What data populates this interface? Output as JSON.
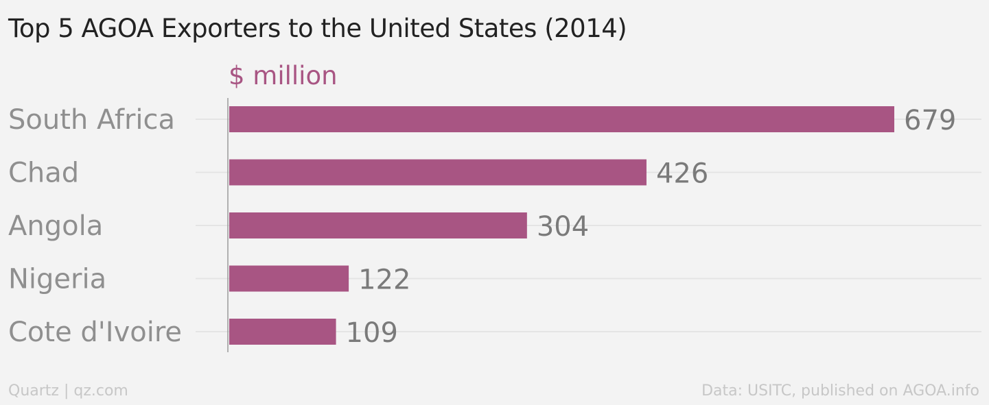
{
  "title": "Top 5 AGOA Exporters to the United States (2014)",
  "unit_label": "$ million",
  "colors": {
    "bar": "#a85583",
    "unit": "#a85583",
    "category_label": "#8f8f8f",
    "value_label": "#7a7a7a",
    "gridline": "#e4e4e4",
    "axis": "#9a9a9a"
  },
  "chart_data": {
    "type": "bar",
    "orientation": "horizontal",
    "categories": [
      "South Africa",
      "Chad",
      "Angola",
      "Nigeria",
      "Cote d'Ivoire"
    ],
    "values": [
      679,
      426,
      304,
      122,
      109
    ],
    "value_labels": [
      "679",
      "426",
      "304",
      "122",
      "109"
    ],
    "xlim": [
      0,
      679
    ],
    "grid": true,
    "legend": false
  },
  "footer": {
    "source_left": "Quartz | qz.com",
    "source_right": "Data: USITC, published on AGOA.info"
  }
}
